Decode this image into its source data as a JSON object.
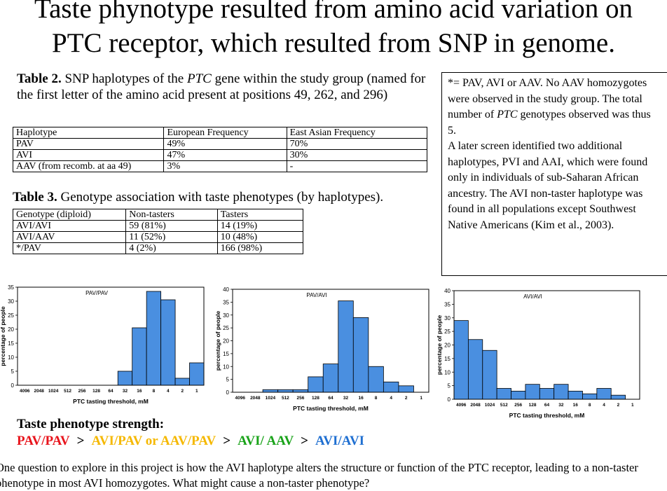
{
  "title": [
    "Taste phynotype resulted from amino acid variation on",
    "PTC receptor, which resulted from SNP in genome."
  ],
  "table2": {
    "caption": [
      {
        "text": "Table 2.",
        "style": "bold"
      },
      {
        "text": " SNP haplotypes of the ",
        "style": "normal"
      },
      {
        "text": "PTC",
        "style": "italic"
      },
      {
        "text": " gene within the study group (named for the first letter of the amino acid present at positions 49, 262, and 296)",
        "style": "normal"
      }
    ],
    "header": [
      "Haplotype",
      "European Frequency",
      "East Asian Frequency"
    ],
    "rows": [
      [
        "PAV",
        "49%",
        "70%"
      ],
      [
        "AVI",
        "47%",
        "30%"
      ],
      [
        "AAV (from recomb. at aa 49)",
        "3%",
        "-"
      ]
    ]
  },
  "table3": {
    "caption": [
      {
        "text": "Table 3.",
        "style": "bold"
      },
      {
        "text": " Genotype association with taste phenotypes (by haplotypes).",
        "style": "normal"
      }
    ],
    "header": [
      "Genotype (diploid)",
      "Non-tasters",
      "Tasters"
    ],
    "rows": [
      [
        "AVI/AVI",
        "59 (81%)",
        "14 (19%)"
      ],
      [
        "AVI/AAV",
        "11 (52%)",
        "10 (48%)"
      ],
      [
        "*/PAV",
        "4 (2%)",
        "166 (98%)"
      ]
    ]
  },
  "note": [
    [
      {
        "text": "*= PAV, AVI or AAV.  No AAV homozygotes were observed in the study group.  The total number of ",
        "style": "normal"
      },
      {
        "text": "PTC",
        "style": "italic"
      },
      {
        "text": " genotypes observed was thus 5.",
        "style": "normal"
      }
    ],
    [
      {
        "text": "A later screen identified two additional haplotypes, PVI and AAI, which were found only in individuals of sub-Saharan African ancestry.  The AVI non-taster haplotype was found in all populations except Southwest Native Americans (Kim et al., 2003).",
        "style": "normal"
      }
    ]
  ],
  "chart_data": [
    {
      "type": "bar",
      "title": "PAV/PAV",
      "x_label": "PTC tasting threshold, mM",
      "y_label": "percentage of people",
      "categories": [
        "4096",
        "2048",
        "1024",
        "512",
        "256",
        "128",
        "64",
        "32",
        "16",
        "8",
        "4",
        "2",
        "1"
      ],
      "values": [
        0,
        0,
        0,
        0,
        0,
        0,
        0,
        5,
        20.5,
        33.5,
        30.5,
        2.5,
        8
      ],
      "color": "#4a8fe0",
      "ylim": [
        0,
        35
      ],
      "yticks": [
        0,
        5,
        10,
        15,
        20,
        25,
        30,
        35
      ]
    },
    {
      "type": "bar",
      "title": "PAV/AVI",
      "x_label": "PTC tasting threshold, mM",
      "y_label": "percentage of people",
      "categories": [
        "4096",
        "2048",
        "1024",
        "512",
        "256",
        "128",
        "64",
        "32",
        "16",
        "8",
        "4",
        "2",
        "1"
      ],
      "values": [
        0,
        0,
        1,
        1,
        1,
        6,
        11,
        35.5,
        29,
        10,
        4,
        2.5,
        0
      ],
      "color": "#4a8fe0",
      "ylim": [
        0,
        40
      ],
      "yticks": [
        0,
        5,
        10,
        15,
        20,
        25,
        30,
        35,
        40
      ]
    },
    {
      "type": "bar",
      "title": "AVI/AVI",
      "x_label": "PTC tasting threshold, mM",
      "y_label": "percentage of people",
      "categories": [
        "4096",
        "2048",
        "1024",
        "512",
        "256",
        "128",
        "64",
        "32",
        "16",
        "8",
        "4",
        "2",
        "1"
      ],
      "values": [
        29,
        22,
        18,
        4,
        3,
        5.5,
        4,
        5.5,
        3,
        2,
        4,
        1.5,
        0
      ],
      "color": "#4a8fe0",
      "ylim": [
        0,
        40
      ],
      "yticks": [
        0,
        5,
        10,
        15,
        20,
        25,
        30,
        35,
        40
      ]
    }
  ],
  "phenotype": {
    "heading": "Taste phenotype strength:",
    "parts": [
      {
        "text": "PAV/PAV",
        "color": "#e8141c"
      },
      {
        "text": ">",
        "color": "#000000"
      },
      {
        "text": "AVI/PAV or AAV/PAV",
        "color": "#f5b800"
      },
      {
        "text": ">",
        "color": "#000000"
      },
      {
        "text": "AVI/ AAV",
        "color": "#1aa31a"
      },
      {
        "text": ">",
        "color": "#000000"
      },
      {
        "text": "AVI/AVI",
        "color": "#1f6fd1"
      }
    ]
  },
  "footer": "One question to explore in this project is how the AVI haplotype alters the structure or function of the PTC receptor, leading to a non-taster phenotype in most AVI homozygotes.  What might cause a non-taster phenotype?"
}
